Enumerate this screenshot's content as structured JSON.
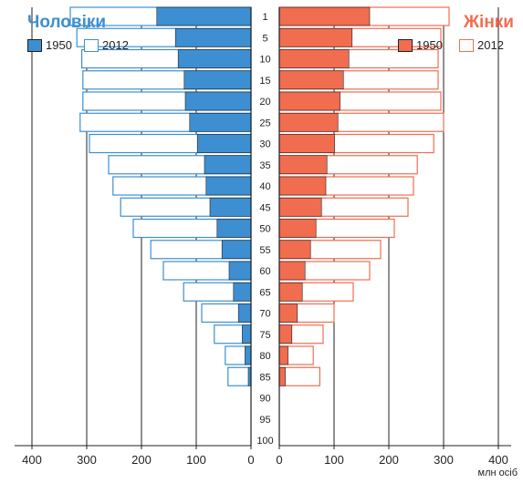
{
  "chart_data": {
    "type": "bar",
    "orientation": "horizontal",
    "unit_label": "млн осіб",
    "age_groups": [
      "1",
      "5",
      "10",
      "15",
      "20",
      "25",
      "30",
      "35",
      "40",
      "45",
      "50",
      "55",
      "60",
      "65",
      "70",
      "75",
      "80",
      "85"
    ],
    "age_axis_ticks": [
      "1",
      "5",
      "10",
      "15",
      "20",
      "25",
      "30",
      "35",
      "40",
      "45",
      "50",
      "55",
      "60",
      "65",
      "70",
      "75",
      "80",
      "85",
      "90",
      "95",
      "100"
    ],
    "x_ticks_left": [
      "400",
      "300",
      "200",
      "100",
      "0"
    ],
    "x_ticks_right": [
      "0",
      "100",
      "200",
      "300",
      "400"
    ],
    "xlim": [
      0,
      400
    ],
    "grid": true,
    "colors": {
      "men_1950": "#3d8fd1",
      "men_2012": "#3d8fd1",
      "women_1950": "#f16d50",
      "women_2012": "#f16d50",
      "men_title": "#3d8fd1",
      "women_title": "#f16d50",
      "grid": "#231f20"
    },
    "panels": [
      {
        "title": "Чоловіки",
        "side": "left",
        "series": [
          {
            "name": "1950",
            "style": "filled",
            "values": [
              172,
              138,
              133,
              122,
              120,
              112,
              98,
              85,
              82,
              75,
              62,
              53,
              40,
              32,
              23,
              16,
              11,
              5
            ]
          },
          {
            "name": "2012",
            "style": "outline",
            "values": [
              330,
              318,
              309,
              307,
              307,
              312,
              295,
              260,
              252,
              238,
              215,
              183,
              160,
              123,
              90,
              67,
              47,
              42
            ]
          }
        ]
      },
      {
        "title": "Жінки",
        "side": "right",
        "series": [
          {
            "name": "1950",
            "style": "filled",
            "values": [
              165,
              133,
              127,
              117,
              111,
              107,
              101,
              87,
              85,
              77,
              67,
              57,
              47,
              42,
              33,
              23,
              16,
              11
            ]
          },
          {
            "name": "2012",
            "style": "outline",
            "values": [
              310,
              295,
              290,
              290,
              295,
              300,
              282,
              252,
              245,
              235,
              210,
              185,
              165,
              135,
              100,
              80,
              62,
              74
            ]
          }
        ]
      }
    ]
  }
}
